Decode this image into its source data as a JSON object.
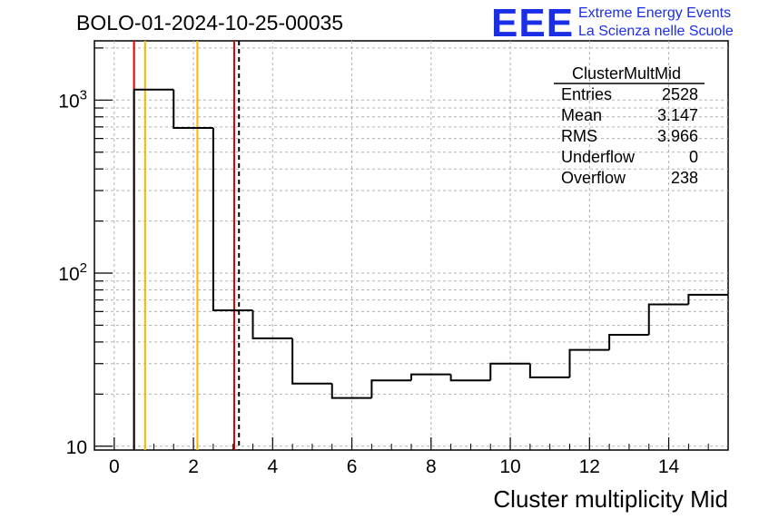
{
  "title": "BOLO-01-2024-10-25-00035",
  "logo": {
    "mark": "EEE",
    "line1": "Extreme Energy Events",
    "line2": "La Scienza nelle Scuole",
    "color": "#1a2ee6"
  },
  "stats": {
    "name": "ClusterMultMid",
    "rows": [
      {
        "label": "Entries",
        "value": "2528"
      },
      {
        "label": "Mean",
        "value": "3.147"
      },
      {
        "label": "RMS",
        "value": "3.966"
      },
      {
        "label": "Underflow",
        "value": "0"
      },
      {
        "label": "Overflow",
        "value": "238"
      }
    ]
  },
  "chart_data": {
    "type": "bar",
    "histogram": true,
    "xlabel": "Cluster multiplicity Mid",
    "ylabel": "",
    "xlim": [
      -0.5,
      15.5
    ],
    "ylim": [
      9.5,
      2200
    ],
    "yscale": "log",
    "grid": true,
    "x_ticks": [
      0,
      2,
      4,
      6,
      8,
      10,
      12,
      14
    ],
    "y_ticks": [
      {
        "value": 10,
        "base": "10",
        "exp": ""
      },
      {
        "value": 100,
        "base": "10",
        "exp": "2"
      },
      {
        "value": 1000,
        "base": "10",
        "exp": "3"
      }
    ],
    "bins": [
      {
        "lo": 0.5,
        "hi": 1.5,
        "value": 1150
      },
      {
        "lo": 1.5,
        "hi": 2.5,
        "value": 690
      },
      {
        "lo": 2.5,
        "hi": 3.5,
        "value": 61
      },
      {
        "lo": 3.5,
        "hi": 4.5,
        "value": 42
      },
      {
        "lo": 4.5,
        "hi": 5.5,
        "value": 23
      },
      {
        "lo": 5.5,
        "hi": 6.5,
        "value": 19
      },
      {
        "lo": 6.5,
        "hi": 7.5,
        "value": 24
      },
      {
        "lo": 7.5,
        "hi": 8.5,
        "value": 26
      },
      {
        "lo": 8.5,
        "hi": 9.5,
        "value": 24
      },
      {
        "lo": 9.5,
        "hi": 10.5,
        "value": 30
      },
      {
        "lo": 10.5,
        "hi": 11.5,
        "value": 25
      },
      {
        "lo": 11.5,
        "hi": 12.5,
        "value": 36
      },
      {
        "lo": 12.5,
        "hi": 13.5,
        "value": 44
      },
      {
        "lo": 13.5,
        "hi": 14.5,
        "value": 66
      },
      {
        "lo": 14.5,
        "hi": 15.5,
        "value": 75
      }
    ],
    "markers": [
      {
        "x": 0.5,
        "color": "#e00000",
        "style": "solid"
      },
      {
        "x": 0.78,
        "color": "#f5b800",
        "style": "solid"
      },
      {
        "x": 2.1,
        "color": "#f5b800",
        "style": "solid"
      },
      {
        "x": 3.03,
        "color": "#e00000",
        "style": "solid"
      },
      {
        "x": 3.15,
        "color": "#000000",
        "style": "dashed"
      }
    ]
  }
}
